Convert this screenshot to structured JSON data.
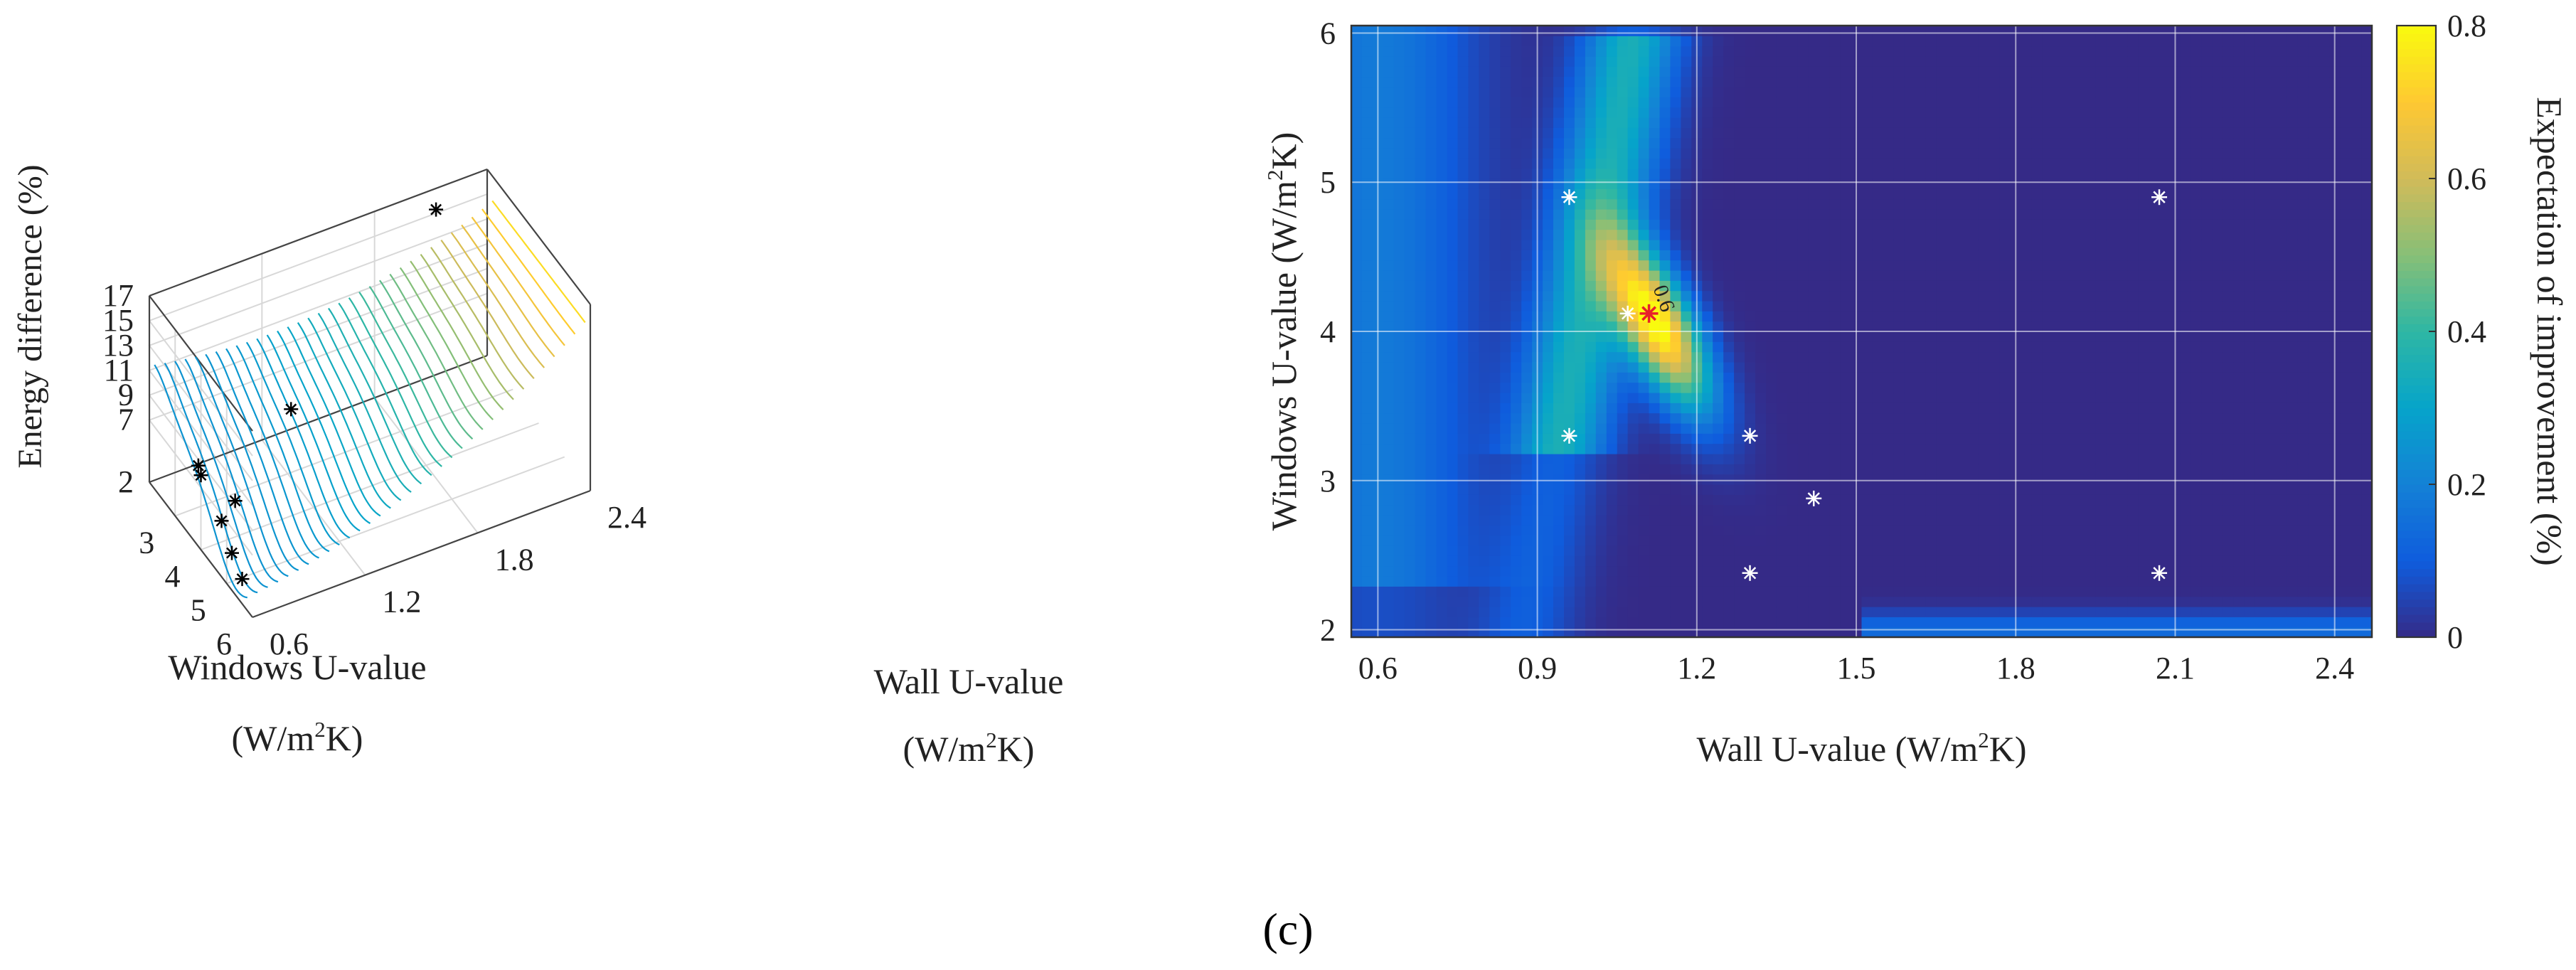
{
  "figure_label": "(c)",
  "chart_data": [
    {
      "type": "3d-contour",
      "title": "",
      "zlabel": "Energy difference (%)",
      "xlabel": {
        "line1": "Windows U-value",
        "line2_pre": "(W/m",
        "line2_sup": "2",
        "line2_post": "K)"
      },
      "ylabel": {
        "line1": "Wall U-value",
        "line2_pre": "(W/m",
        "line2_sup": "2",
        "line2_post": "K)"
      },
      "z_ticks": [
        "2",
        "7",
        "9",
        "11",
        "13",
        "15",
        "17"
      ],
      "x_ticks": [
        "3",
        "4",
        "5",
        "6"
      ],
      "y_ticks": [
        "0.6",
        "1.2",
        "1.8",
        "2.4"
      ],
      "xlim": [
        2,
        6
      ],
      "ylim": [
        0.6,
        2.4
      ],
      "zlim": [
        2,
        17
      ],
      "grid": true,
      "colormap": [
        "#352a87",
        "#0f5cdd",
        "#1481d6",
        "#06a4ca",
        "#2eb7a4",
        "#87bf77",
        "#d1bb59",
        "#fec832",
        "#f9fb0e"
      ],
      "samples": [
        {
          "windows": 5.6,
          "wall": 0.6,
          "energy": 4
        },
        {
          "windows": 5.2,
          "wall": 0.6,
          "energy": 5
        },
        {
          "windows": 4.8,
          "wall": 0.6,
          "energy": 6.5
        },
        {
          "windows": 4.6,
          "wall": 0.7,
          "energy": 7
        },
        {
          "windows": 4.0,
          "wall": 0.6,
          "energy": 8
        },
        {
          "windows": 3.9,
          "wall": 0.6,
          "energy": 8.5
        },
        {
          "windows": 2.4,
          "wall": 1.3,
          "energy": 5
        },
        {
          "windows": 2.2,
          "wall": 2.1,
          "energy": 16
        }
      ]
    },
    {
      "type": "heatmap",
      "title": "",
      "xlabel": {
        "pre": "Wall U-value (W/m",
        "sup": "2",
        "post": "K)"
      },
      "ylabel": {
        "pre": "Windows U-value (W/m",
        "sup": "2",
        "post": "K)"
      },
      "colorbar_label": "Expectation of improvement (%)",
      "x_ticks": [
        "0.6",
        "0.9",
        "1.2",
        "1.5",
        "1.8",
        "2.1",
        "2.4"
      ],
      "y_ticks": [
        "2",
        "3",
        "4",
        "5",
        "6"
      ],
      "colorbar_ticks": [
        "0",
        "0.2",
        "0.4",
        "0.6",
        "0.8"
      ],
      "xlim": [
        0.55,
        2.47
      ],
      "ylim": [
        1.95,
        6.05
      ],
      "clim": [
        0,
        0.8
      ],
      "grid": true,
      "colormap": [
        "#352a87",
        "#0f5cdd",
        "#1481d6",
        "#06a4ca",
        "#2eb7a4",
        "#87bf77",
        "#d1bb59",
        "#fec832",
        "#f9fb0e"
      ],
      "contour_label": "0.6",
      "points": [
        {
          "x": 0.96,
          "y": 4.9
        },
        {
          "x": 2.07,
          "y": 4.9
        },
        {
          "x": 0.96,
          "y": 3.3
        },
        {
          "x": 1.3,
          "y": 3.3
        },
        {
          "x": 1.42,
          "y": 2.88
        },
        {
          "x": 1.3,
          "y": 2.38
        },
        {
          "x": 2.07,
          "y": 2.38
        },
        {
          "x": 1.07,
          "y": 4.12
        }
      ],
      "best_point": {
        "x": 1.11,
        "y": 4.12
      }
    }
  ]
}
